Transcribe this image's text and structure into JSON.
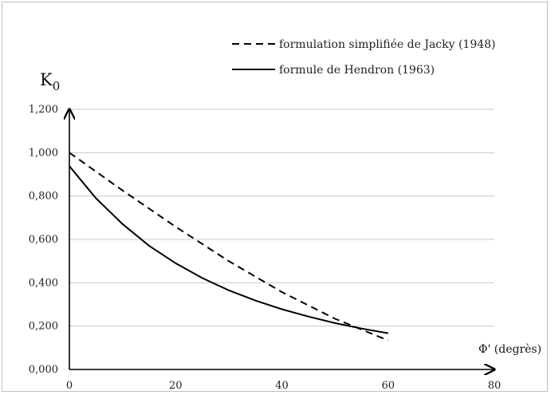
{
  "chart_data": {
    "type": "line",
    "xlabel": "Φ' (degrès)",
    "ylabel": "K",
    "ylabel_subscript": "0",
    "xlim": [
      0,
      80
    ],
    "ylim": [
      0,
      1.2
    ],
    "x_ticks": [
      "0",
      "20",
      "40",
      "60",
      "80"
    ],
    "y_ticks": [
      "0,000",
      "0,200",
      "0,400",
      "0,600",
      "0,800",
      "1,000",
      "1,200"
    ],
    "grid": "horizontal",
    "legend_position": "top-right",
    "series": [
      {
        "name": "formulation simplifiée de Jacky (1948)",
        "style": "dashed",
        "color": "#000000",
        "x": [
          0,
          10,
          20,
          30,
          40,
          50,
          60
        ],
        "y": [
          1.0,
          0.826,
          0.658,
          0.5,
          0.357,
          0.234,
          0.134
        ]
      },
      {
        "name": "formule de Hendron (1963)",
        "style": "solid",
        "color": "#000000",
        "x": [
          0,
          5,
          10,
          15,
          20,
          25,
          30,
          35,
          40,
          45,
          50,
          55,
          60
        ],
        "y": [
          0.938,
          0.79,
          0.671,
          0.571,
          0.49,
          0.422,
          0.365,
          0.318,
          0.278,
          0.244,
          0.214,
          0.189,
          0.167
        ]
      }
    ]
  }
}
